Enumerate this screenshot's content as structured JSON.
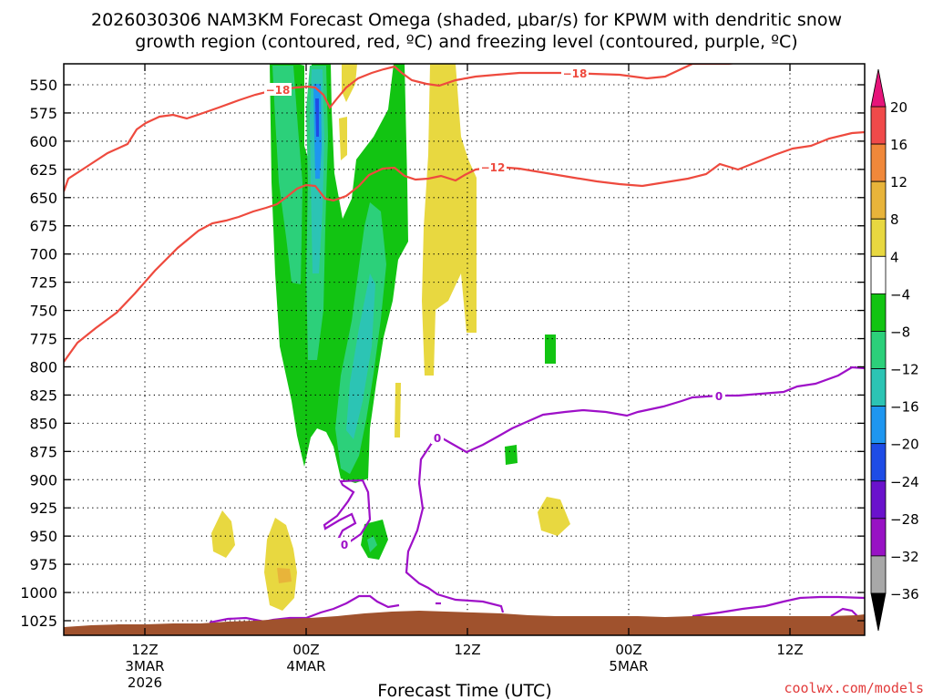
{
  "chart_data": {
    "type": "contour",
    "title_line1": "2026030306 NAM3KM Forecast Omega (shaded, μbar/s) for KPWM with dendritic snow",
    "title_line2": "growth region (contoured, red, ºC) and freezing level (contoured, purple, ºC)",
    "xlabel": "Forecast Time (UTC)",
    "credit": "coolwx.com/models",
    "y_axis": {
      "reversed": true,
      "units": "mb",
      "ylim": [
        1040,
        530
      ],
      "ticks": [
        550,
        575,
        600,
        625,
        650,
        675,
        700,
        725,
        750,
        775,
        800,
        825,
        850,
        875,
        900,
        925,
        950,
        975,
        1000,
        1025
      ]
    },
    "x_axis": {
      "xlim_hours": [
        6,
        66
      ],
      "ticks": [
        {
          "hour": 12,
          "lines": [
            "12Z",
            "3MAR",
            "2026"
          ]
        },
        {
          "hour": 24,
          "lines": [
            "00Z",
            "4MAR"
          ]
        },
        {
          "hour": 36,
          "lines": [
            "12Z"
          ]
        },
        {
          "hour": 48,
          "lines": [
            "00Z",
            "5MAR"
          ]
        },
        {
          "hour": 60,
          "lines": [
            "12Z"
          ]
        }
      ]
    },
    "colorbar": {
      "levels": [
        "20",
        "16",
        "12",
        "8",
        "4",
        "−4",
        "−8",
        "−12",
        "−16",
        "−20",
        "−24",
        "−28",
        "−32",
        "−36"
      ],
      "colors": [
        "#f04a4a",
        "#f0883a",
        "#e8b43a",
        "#e8d840",
        "#ffffff",
        "#12c412",
        "#2cd07a",
        "#2cc4b4",
        "#1e96f0",
        "#1e4ce6",
        "#6a12cc",
        "#9812c4",
        "#a8a8a8"
      ],
      "over_color": "#e6147a",
      "under_color": "#000000"
    },
    "contours": {
      "dgz_color": "#ee4a3e",
      "freezing_color": "#9e10c8",
      "labels": [
        "−18",
        "−18",
        "−12",
        "0",
        "0",
        "0"
      ]
    },
    "terrain_color": "#a0522d"
  }
}
